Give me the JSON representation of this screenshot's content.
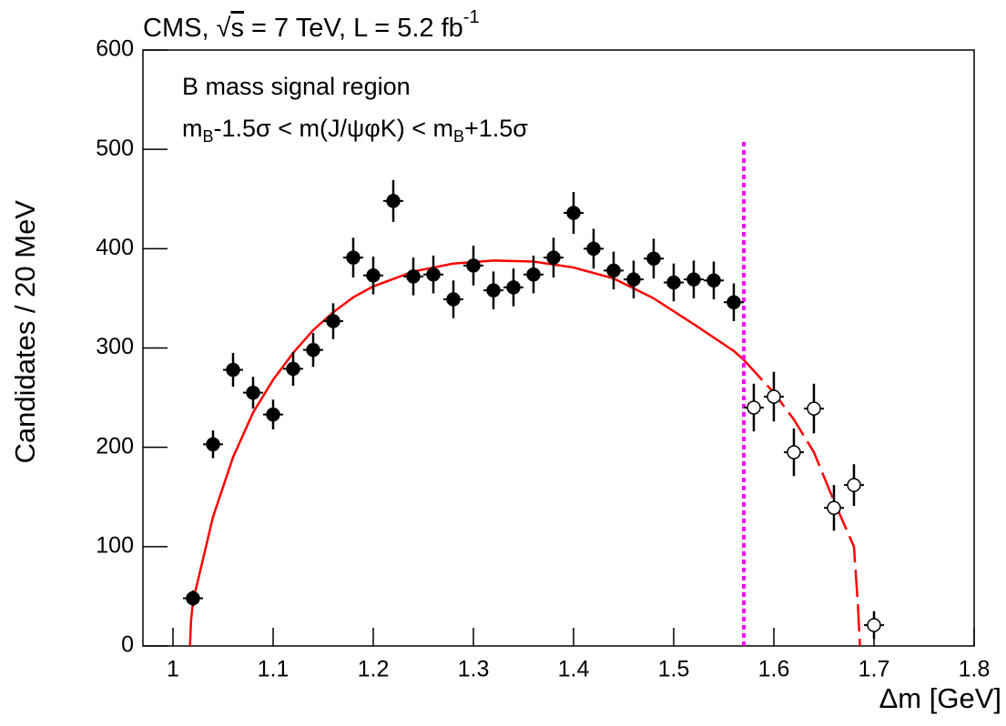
{
  "chart_data": {
    "type": "scatter",
    "title_parts": [
      "CMS, ",
      "√",
      "s",
      " = 7 TeV, L = 5.2 fb",
      "-1"
    ],
    "annotation": "B mass signal region",
    "annotation_color": "#1a1aff",
    "condition_parts": [
      "m",
      "B",
      "-1.5σ < m(J/ψφK) < m",
      "B",
      "+1.5σ"
    ],
    "x_label": "Δm  [GeV]",
    "y_label": "Candidates / 20 MeV",
    "xlim": [
      0.97,
      1.8
    ],
    "ylim": [
      0,
      600
    ],
    "xticks": [
      1,
      1.1,
      1.2,
      1.3,
      1.4,
      1.5,
      1.6,
      1.7,
      1.8
    ],
    "yticks": [
      0,
      100,
      200,
      300,
      400,
      500,
      600
    ],
    "series": [
      {
        "marker_fill": "#000000",
        "color": "#000000",
        "x": [
          1.02,
          1.04,
          1.06,
          1.08,
          1.1,
          1.12,
          1.14,
          1.16,
          1.18,
          1.2,
          1.22,
          1.24,
          1.26,
          1.28,
          1.3,
          1.32,
          1.34,
          1.36,
          1.38,
          1.4,
          1.42,
          1.44,
          1.46,
          1.48,
          1.5,
          1.52,
          1.54,
          1.56
        ],
        "values": [
          48,
          203,
          278,
          255,
          233,
          279,
          298,
          327,
          391,
          373,
          448,
          372,
          374,
          349,
          383,
          358,
          361,
          374,
          391,
          436,
          400,
          378,
          369,
          390,
          366,
          369,
          368,
          346
        ],
        "errors": [
          8,
          14,
          17,
          16,
          15,
          17,
          17,
          18,
          20,
          19,
          21,
          19,
          19,
          19,
          20,
          19,
          19,
          19,
          20,
          21,
          20,
          19,
          19,
          20,
          19,
          19,
          19,
          19
        ]
      },
      {
        "marker_fill": "#ffffff",
        "color": "#000000",
        "x": [
          1.58,
          1.6,
          1.62,
          1.64,
          1.66,
          1.68,
          1.7
        ],
        "values": [
          240,
          251,
          195,
          239,
          139,
          162,
          21
        ],
        "errors": [
          24,
          25,
          24,
          25,
          23,
          21,
          14
        ]
      }
    ],
    "fit": [
      {
        "color": "#ff0000",
        "dashed": false,
        "x": [
          1.017,
          1.018,
          1.02,
          1.04,
          1.06,
          1.08,
          1.1,
          1.12,
          1.14,
          1.16,
          1.18,
          1.2,
          1.24,
          1.28,
          1.32,
          1.36,
          1.4,
          1.44,
          1.48,
          1.52,
          1.56,
          1.57
        ],
        "values": [
          0,
          25,
          45,
          130,
          190,
          235,
          268,
          295,
          318,
          336,
          351,
          362,
          377,
          385,
          388,
          387,
          381,
          370,
          350,
          324,
          297,
          288
        ]
      },
      {
        "color": "#ff0000",
        "dashed": true,
        "x": [
          1.57,
          1.6,
          1.62,
          1.64,
          1.66,
          1.68,
          1.684,
          1.686
        ],
        "values": [
          288,
          255,
          228,
          195,
          146,
          100,
          40,
          0
        ]
      }
    ],
    "cut_line": {
      "x": 1.57,
      "top": 510,
      "color": "#ff00ff"
    }
  }
}
